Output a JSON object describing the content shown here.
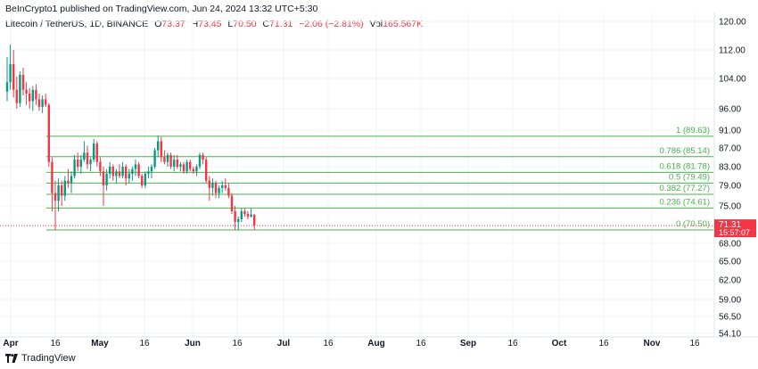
{
  "header": {
    "published_text": "BeInCrypto1 published on TradingView.com, Jun 24, 2024 13:32 UTC+5:30"
  },
  "symbol": {
    "name": "Litecoin / TetherUS, 1D, BINANCE",
    "o_label": "O",
    "o_value": "73.37",
    "h_label": "H",
    "h_value": "73.45",
    "l_label": "L",
    "l_value": "70.50",
    "c_label": "C",
    "c_value": "71.31",
    "change": "−2.06 (−2.81%)",
    "vol_label": "Vol",
    "vol_value": "165.567K"
  },
  "footer": {
    "brand": "TradingView"
  },
  "price_tag": {
    "price": "71.31",
    "countdown": "15:57:07",
    "color": "#f23645"
  },
  "colors": {
    "up": "#089981",
    "down": "#f23645",
    "fib": "#4caf50"
  },
  "chart_data": {
    "type": "candlestick",
    "y_axis_ticks": [
      "120.00",
      "112.00",
      "104.00",
      "96.00",
      "91.00",
      "87.00",
      "83.00",
      "79.00",
      "75.00",
      "68.00",
      "65.00",
      "62.00",
      "59.00",
      "56.50",
      "54.10"
    ],
    "x_axis_ticks": [
      "Apr",
      "16",
      "May",
      "16",
      "Jun",
      "16",
      "Jul",
      "16",
      "Aug",
      "16",
      "Sep",
      "16",
      "Oct",
      "16",
      "Nov",
      "16"
    ],
    "fib_levels": [
      {
        "label": "1 (89.63)",
        "value": 89.63
      },
      {
        "label": "0.786 (85.14)",
        "value": 85.14
      },
      {
        "label": "0.618 (81.78)",
        "value": 81.78
      },
      {
        "label": "0.5 (79.49)",
        "value": 79.49
      },
      {
        "label": "0.382 (77.27)",
        "value": 77.27
      },
      {
        "label": "0.236 (74.61)",
        "value": 74.61
      },
      {
        "label": "0 (70.50)",
        "value": 70.5
      }
    ],
    "last_price": 71.31,
    "candles": [
      [
        100.5,
        110.0,
        98.0,
        103.0
      ],
      [
        103.0,
        113.5,
        101.0,
        108.0
      ],
      [
        108.0,
        112.0,
        99.0,
        101.0
      ],
      [
        101.0,
        104.5,
        96.0,
        97.5
      ],
      [
        97.5,
        106.0,
        96.5,
        105.0
      ],
      [
        105.0,
        107.0,
        99.5,
        101.0
      ],
      [
        101.0,
        103.0,
        97.0,
        100.0
      ],
      [
        100.0,
        101.5,
        96.0,
        98.0
      ],
      [
        98.0,
        102.0,
        95.5,
        101.0
      ],
      [
        101.0,
        102.5,
        97.0,
        98.5
      ],
      [
        98.5,
        100.0,
        95.5,
        96.5
      ],
      [
        96.5,
        99.5,
        95.0,
        98.5
      ],
      [
        98.5,
        100.0,
        96.5,
        97.0
      ],
      [
        97.0,
        97.5,
        83.0,
        84.0
      ],
      [
        84.0,
        85.0,
        74.0,
        77.5
      ],
      [
        77.5,
        80.0,
        70.5,
        76.0
      ],
      [
        76.0,
        80.5,
        74.0,
        79.0
      ],
      [
        79.0,
        80.0,
        75.0,
        77.0
      ],
      [
        77.0,
        81.0,
        76.0,
        80.0
      ],
      [
        80.0,
        82.5,
        78.5,
        79.5
      ],
      [
        79.5,
        82.0,
        77.5,
        81.0
      ],
      [
        81.0,
        85.5,
        80.5,
        84.5
      ],
      [
        84.5,
        86.0,
        82.0,
        83.0
      ],
      [
        83.0,
        85.5,
        81.5,
        84.5
      ],
      [
        84.5,
        88.5,
        84.0,
        86.0
      ],
      [
        86.0,
        87.5,
        82.5,
        83.5
      ],
      [
        83.5,
        85.0,
        82.0,
        84.5
      ],
      [
        84.5,
        89.0,
        84.0,
        88.0
      ],
      [
        88.0,
        88.5,
        83.0,
        84.0
      ],
      [
        84.0,
        85.0,
        81.0,
        82.0
      ],
      [
        82.0,
        83.0,
        75.0,
        79.0
      ],
      [
        79.0,
        82.5,
        78.0,
        81.5
      ],
      [
        81.5,
        84.0,
        80.5,
        83.0
      ],
      [
        83.0,
        83.5,
        80.0,
        81.0
      ],
      [
        81.0,
        82.5,
        79.5,
        82.0
      ],
      [
        82.0,
        83.5,
        80.5,
        81.0
      ],
      [
        81.0,
        84.0,
        80.5,
        83.0
      ],
      [
        83.0,
        83.5,
        79.0,
        80.5
      ],
      [
        80.5,
        82.5,
        79.5,
        81.5
      ],
      [
        81.5,
        83.0,
        80.0,
        82.5
      ],
      [
        82.5,
        84.5,
        81.0,
        83.5
      ],
      [
        83.5,
        84.0,
        80.5,
        81.0
      ],
      [
        81.0,
        81.5,
        78.5,
        79.0
      ],
      [
        79.0,
        82.0,
        78.5,
        81.5
      ],
      [
        81.5,
        83.0,
        80.5,
        82.0
      ],
      [
        82.0,
        83.5,
        80.5,
        83.0
      ],
      [
        83.0,
        87.0,
        82.5,
        86.5
      ],
      [
        86.5,
        89.8,
        85.0,
        88.5
      ],
      [
        88.5,
        89.5,
        84.0,
        85.0
      ],
      [
        85.0,
        86.5,
        83.5,
        84.0
      ],
      [
        84.0,
        86.0,
        83.0,
        85.5
      ],
      [
        85.5,
        86.0,
        82.5,
        83.0
      ],
      [
        83.0,
        85.5,
        82.0,
        84.5
      ],
      [
        84.5,
        85.5,
        82.5,
        83.0
      ],
      [
        83.0,
        84.0,
        82.0,
        83.5
      ],
      [
        83.5,
        84.0,
        81.5,
        82.0
      ],
      [
        82.0,
        84.5,
        81.5,
        84.0
      ],
      [
        84.0,
        84.5,
        82.0,
        82.5
      ],
      [
        82.5,
        83.0,
        81.5,
        82.0
      ],
      [
        82.0,
        83.5,
        81.0,
        83.0
      ],
      [
        83.0,
        86.0,
        82.5,
        85.5
      ],
      [
        85.5,
        86.0,
        83.5,
        84.5
      ],
      [
        84.5,
        85.0,
        79.5,
        80.0
      ],
      [
        80.0,
        81.0,
        76.0,
        78.5
      ],
      [
        78.5,
        80.5,
        77.0,
        79.5
      ],
      [
        79.5,
        80.0,
        76.5,
        77.5
      ],
      [
        77.5,
        79.0,
        76.5,
        78.5
      ],
      [
        78.5,
        80.0,
        77.5,
        79.0
      ],
      [
        79.0,
        80.5,
        78.0,
        78.5
      ],
      [
        78.5,
        79.5,
        76.5,
        77.0
      ],
      [
        77.0,
        77.5,
        73.5,
        74.0
      ],
      [
        74.0,
        75.0,
        70.5,
        72.0
      ],
      [
        72.0,
        73.0,
        70.5,
        72.5
      ],
      [
        72.5,
        74.5,
        72.0,
        74.0
      ],
      [
        74.0,
        74.5,
        73.0,
        73.5
      ],
      [
        73.5,
        74.0,
        72.5,
        73.0
      ],
      [
        73.0,
        74.5,
        72.8,
        73.4
      ],
      [
        73.37,
        73.45,
        70.5,
        71.31
      ]
    ]
  }
}
